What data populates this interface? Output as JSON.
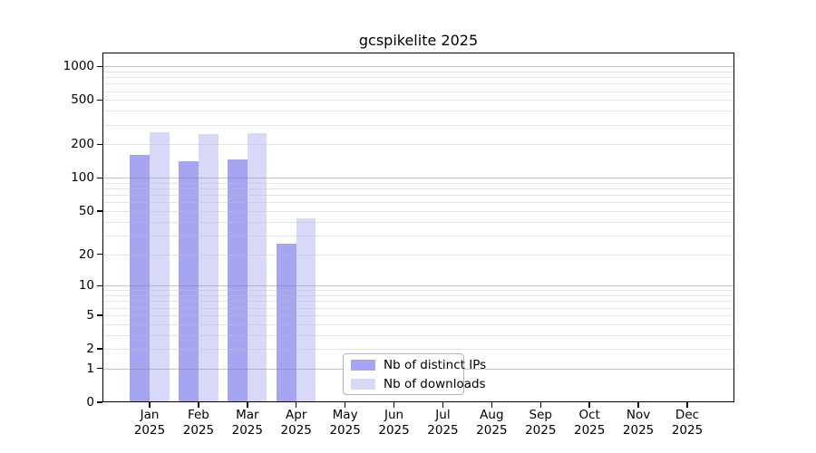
{
  "title": "gcspikelite 2025",
  "chart_data": {
    "type": "bar",
    "title": "gcspikelite 2025",
    "yscale": "log1p",
    "categories": [
      "Jan",
      "Feb",
      "Mar",
      "Apr",
      "May",
      "Jun",
      "Jul",
      "Aug",
      "Sep",
      "Oct",
      "Nov",
      "Dec"
    ],
    "year": "2025",
    "series": [
      {
        "name": "Nb of distinct IPs",
        "color": "#a5a5f2",
        "values": [
          160,
          142,
          147,
          25,
          0,
          0,
          0,
          0,
          0,
          0,
          0,
          0
        ]
      },
      {
        "name": "Nb of downloads",
        "color": "#d8d8f9",
        "values": [
          258,
          246,
          254,
          43,
          0,
          0,
          0,
          0,
          0,
          0,
          0,
          0
        ]
      }
    ],
    "y_ticks": [
      1000,
      500,
      200,
      100,
      50,
      20,
      10,
      5,
      2,
      1,
      0
    ],
    "ylim": [
      0,
      1330
    ],
    "grid": true,
    "legend": {
      "position": "inside-bottom-center",
      "labels": [
        "Nb of distinct IPs",
        "Nb of downloads"
      ]
    }
  },
  "colors": {
    "background": "#ffffff",
    "axis": "#000000",
    "grid_major": "#c9c9c9",
    "grid_minor": "#ededed",
    "bar_distinct_ips": "#a5a5f2",
    "bar_downloads": "#d8d8f9"
  }
}
